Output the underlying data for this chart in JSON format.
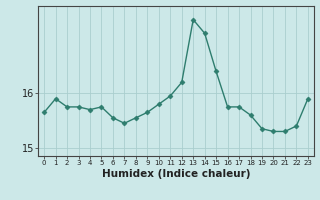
{
  "x": [
    0,
    1,
    2,
    3,
    4,
    5,
    6,
    7,
    8,
    9,
    10,
    11,
    12,
    13,
    14,
    15,
    16,
    17,
    18,
    19,
    20,
    21,
    22,
    23
  ],
  "y": [
    15.65,
    15.9,
    15.75,
    15.75,
    15.7,
    15.75,
    15.55,
    15.45,
    15.55,
    15.65,
    15.8,
    15.95,
    16.2,
    17.35,
    17.1,
    16.4,
    15.75,
    15.75,
    15.6,
    15.35,
    15.3,
    15.3,
    15.4,
    15.9
  ],
  "line_color": "#2e7d6e",
  "marker": "D",
  "marker_size": 2.5,
  "bg_color": "#cce8e8",
  "grid_color": "#aacece",
  "xlabel": "Humidex (Indice chaleur)",
  "xlabel_fontsize": 7.5,
  "yticks": [
    15,
    16
  ],
  "ylim": [
    14.85,
    17.6
  ],
  "xlim": [
    -0.5,
    23.5
  ],
  "tick_fontsize": 7,
  "line_width": 1.0
}
